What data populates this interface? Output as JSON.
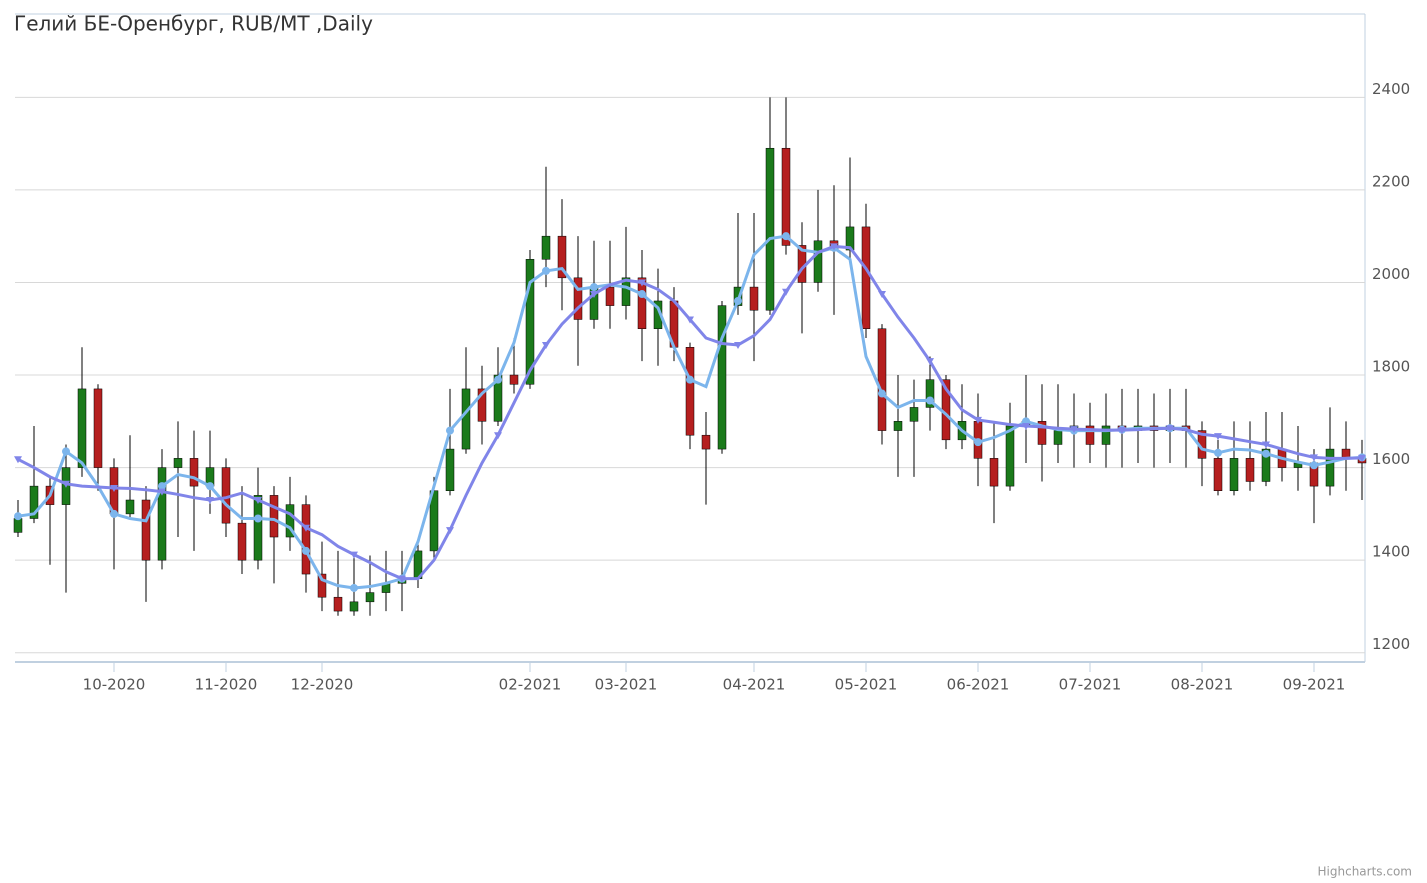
{
  "chart_data": {
    "type": "candlestick",
    "title": "Гелий БЕ-Оренбург, RUB/MT ,Daily",
    "credit": "Highcharts.com",
    "categories": [
      null,
      null,
      null,
      null,
      null,
      null,
      "10-2020",
      null,
      null,
      null,
      null,
      null,
      null,
      "11-2020",
      null,
      null,
      null,
      null,
      null,
      "12-2020",
      null,
      null,
      null,
      null,
      null,
      null,
      null,
      null,
      null,
      null,
      null,
      null,
      "02-2021",
      null,
      null,
      null,
      null,
      null,
      "03-2021",
      null,
      null,
      null,
      null,
      null,
      null,
      null,
      "04-2021",
      null,
      null,
      null,
      null,
      null,
      null,
      "05-2021",
      null,
      null,
      null,
      null,
      null,
      null,
      "06-2021",
      null,
      null,
      null,
      null,
      null,
      null,
      "07-2021",
      null,
      null,
      null,
      null,
      null,
      null,
      "08-2021",
      null,
      null,
      null,
      null,
      null,
      null,
      "09-2021",
      null,
      null,
      null
    ],
    "open": [
      1460,
      1490,
      1560,
      1520,
      1600,
      1770,
      1600,
      1500,
      1530,
      1400,
      1600,
      1620,
      1560,
      1600,
      1480,
      1400,
      1540,
      1450,
      1520,
      1370,
      1320,
      1290,
      1310,
      1330,
      1350,
      1360,
      1420,
      1550,
      1640,
      1770,
      1700,
      1800,
      1780,
      2050,
      2100,
      2010,
      1920,
      1990,
      1950,
      2010,
      1900,
      1960,
      1860,
      1670,
      1640,
      1950,
      1990,
      1940,
      2290,
      2080,
      2000,
      2090,
      2070,
      2120,
      1900,
      1680,
      1700,
      1730,
      1790,
      1660,
      1700,
      1620,
      1560,
      1690,
      1700,
      1650,
      1680,
      1690,
      1650,
      1690,
      1680,
      1690,
      1680,
      1690,
      1680,
      1620,
      1550,
      1620,
      1570,
      1640,
      1600,
      1610,
      1560,
      1640,
      1620
    ],
    "high": [
      1530,
      1690,
      1580,
      1650,
      1860,
      1780,
      1620,
      1670,
      1560,
      1640,
      1700,
      1680,
      1680,
      1620,
      1560,
      1600,
      1560,
      1580,
      1540,
      1440,
      1420,
      1410,
      1410,
      1420,
      1420,
      1440,
      1580,
      1770,
      1860,
      1820,
      1860,
      1880,
      2070,
      2250,
      2180,
      2100,
      2090,
      2090,
      2120,
      2070,
      2030,
      1990,
      1870,
      1720,
      1960,
      2150,
      2150,
      2400,
      2400,
      2130,
      2200,
      2210,
      2270,
      2170,
      1910,
      1800,
      1790,
      1840,
      1800,
      1780,
      1760,
      1700,
      1740,
      1800,
      1780,
      1780,
      1760,
      1740,
      1760,
      1770,
      1770,
      1760,
      1770,
      1770,
      1700,
      1660,
      1700,
      1700,
      1720,
      1720,
      1690,
      1640,
      1730,
      1700,
      1660
    ],
    "low": [
      1450,
      1480,
      1390,
      1330,
      1580,
      1550,
      1380,
      1490,
      1310,
      1380,
      1450,
      1420,
      1500,
      1450,
      1370,
      1380,
      1350,
      1420,
      1330,
      1290,
      1280,
      1280,
      1280,
      1290,
      1290,
      1340,
      1400,
      1540,
      1630,
      1650,
      1690,
      1760,
      1770,
      1990,
      1940,
      1820,
      1900,
      1900,
      1920,
      1830,
      1820,
      1830,
      1640,
      1520,
      1630,
      1930,
      1830,
      1930,
      2060,
      1890,
      1980,
      1930,
      2040,
      1880,
      1650,
      1580,
      1580,
      1680,
      1640,
      1640,
      1560,
      1480,
      1550,
      1610,
      1570,
      1610,
      1600,
      1610,
      1600,
      1600,
      1610,
      1600,
      1610,
      1600,
      1560,
      1540,
      1540,
      1550,
      1560,
      1570,
      1550,
      1480,
      1540,
      1550,
      1530
    ],
    "close": [
      1490,
      1560,
      1520,
      1600,
      1770,
      1600,
      1500,
      1530,
      1400,
      1600,
      1620,
      1560,
      1600,
      1480,
      1400,
      1540,
      1450,
      1520,
      1370,
      1320,
      1290,
      1310,
      1330,
      1350,
      1360,
      1420,
      1550,
      1640,
      1770,
      1700,
      1800,
      1780,
      2050,
      2100,
      2010,
      1920,
      1990,
      1950,
      2010,
      1900,
      1960,
      1860,
      1670,
      1640,
      1950,
      1990,
      1940,
      2290,
      2080,
      2000,
      2090,
      2070,
      2120,
      1900,
      1680,
      1700,
      1730,
      1790,
      1660,
      1700,
      1620,
      1560,
      1690,
      1700,
      1650,
      1680,
      1690,
      1650,
      1690,
      1680,
      1690,
      1680,
      1690,
      1680,
      1620,
      1550,
      1620,
      1570,
      1640,
      1600,
      1610,
      1560,
      1640,
      1620,
      1610
    ],
    "up_color": "#1b7a1b",
    "down_color": "#b51f1f",
    "lines": [
      {
        "color": "#7cb5ec",
        "marker": "circle",
        "values": [
          1495,
          1500,
          1540,
          1635,
          1610,
          1560,
          1500,
          1490,
          1485,
          1560,
          1585,
          1578,
          1560,
          1520,
          1490,
          1490,
          1488,
          1470,
          1420,
          1358,
          1345,
          1340,
          1343,
          1350,
          1360,
          1440,
          1560,
          1680,
          1720,
          1760,
          1790,
          1870,
          2000,
          2025,
          2030,
          1985,
          1990,
          1995,
          1990,
          1975,
          1945,
          1860,
          1790,
          1775,
          1880,
          1960,
          2060,
          2095,
          2100,
          2070,
          2065,
          2075,
          2050,
          1840,
          1760,
          1730,
          1745,
          1745,
          1715,
          1680,
          1655,
          1665,
          1680,
          1700,
          1690,
          1682,
          1680,
          1680,
          1680,
          1682,
          1685,
          1685,
          1685,
          1685,
          1640,
          1632,
          1640,
          1638,
          1630,
          1620,
          1612,
          1605,
          1612,
          1620,
          1622
        ]
      },
      {
        "color": "#8085e9",
        "marker": "triangle-down",
        "values": [
          1618,
          1600,
          1580,
          1565,
          1560,
          1558,
          1556,
          1555,
          1552,
          1548,
          1542,
          1535,
          1530,
          1535,
          1545,
          1530,
          1515,
          1500,
          1470,
          1455,
          1430,
          1412,
          1395,
          1375,
          1360,
          1360,
          1400,
          1465,
          1540,
          1610,
          1670,
          1740,
          1810,
          1865,
          1910,
          1945,
          1975,
          1995,
          2005,
          2000,
          1985,
          1960,
          1920,
          1880,
          1868,
          1865,
          1885,
          1920,
          1980,
          2030,
          2065,
          2078,
          2075,
          2030,
          1975,
          1925,
          1880,
          1830,
          1770,
          1725,
          1703,
          1698,
          1693,
          1690,
          1688,
          1685,
          1683,
          1682,
          1681,
          1681,
          1682,
          1684,
          1685,
          1682,
          1672,
          1668,
          1662,
          1656,
          1650,
          1640,
          1630,
          1622,
          1620,
          1620,
          1621
        ]
      }
    ],
    "ylim": [
      1180,
      2580
    ],
    "yticks": [
      1200,
      1400,
      1600,
      1800,
      2000,
      2200,
      2400
    ],
    "grid": true
  }
}
